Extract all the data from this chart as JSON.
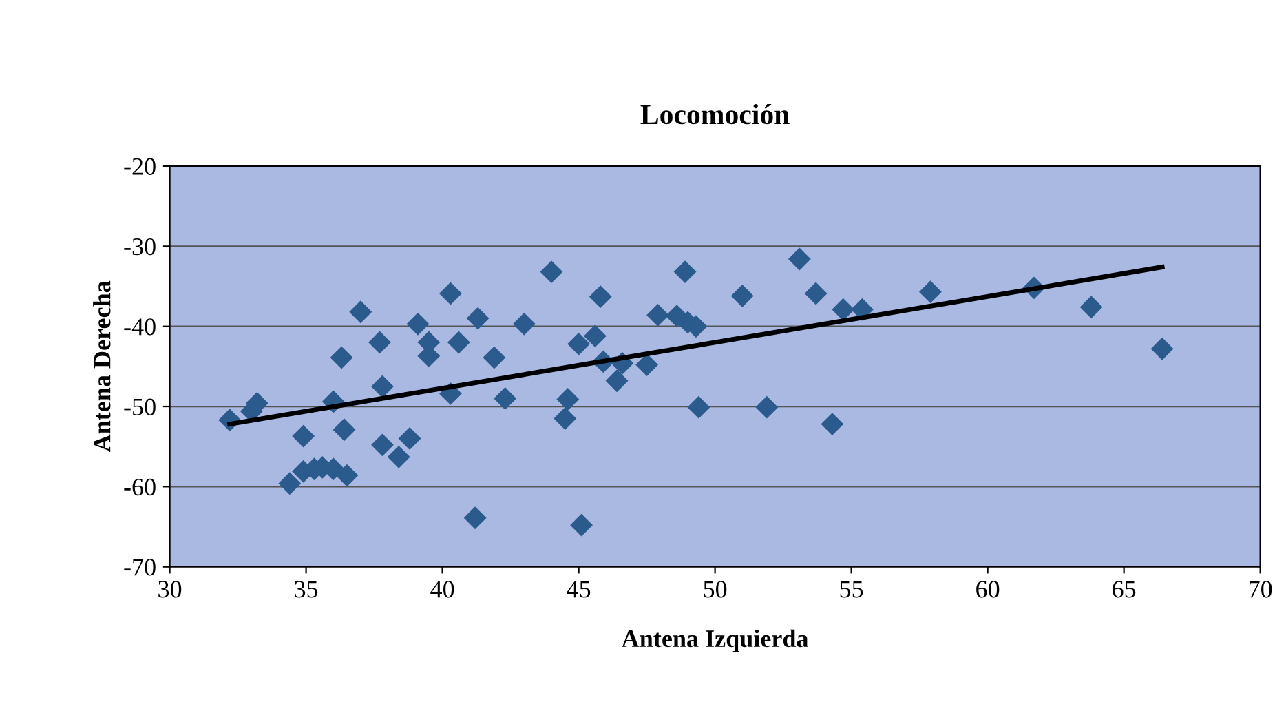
{
  "chart_data": {
    "type": "scatter",
    "title": "Locomoción",
    "xlabel": "Antena Izquierda",
    "ylabel": "Antena Derecha",
    "xlim": [
      30,
      70
    ],
    "xticks": [
      30,
      35,
      40,
      45,
      50,
      55,
      60,
      65,
      70
    ],
    "ylim": [
      -70,
      -20
    ],
    "yticks": [
      -70,
      -60,
      -50,
      -40,
      -30,
      -20
    ],
    "grid": "y",
    "series": [
      {
        "marker": "diamond",
        "color": "#2b5a8c",
        "x": [
          32.2,
          33.0,
          33.2,
          34.4,
          34.9,
          34.9,
          35.3,
          35.6,
          36.0,
          36.0,
          36.3,
          36.4,
          36.5,
          37.0,
          37.7,
          37.8,
          37.8,
          38.4,
          38.8,
          39.1,
          39.5,
          39.5,
          40.3,
          40.3,
          40.6,
          41.2,
          41.3,
          41.9,
          42.3,
          43.0,
          44.0,
          44.5,
          44.6,
          45.0,
          45.1,
          45.6,
          45.8,
          45.9,
          46.4,
          46.6,
          47.5,
          47.9,
          48.6,
          48.9,
          49.0,
          49.3,
          49.4,
          51.0,
          51.9,
          53.1,
          53.7,
          54.3,
          54.7,
          55.4,
          57.9,
          61.7,
          63.8,
          66.4
        ],
        "values": [
          -51.7,
          -50.6,
          -49.6,
          -59.6,
          -53.7,
          -58.1,
          -57.8,
          -57.6,
          -57.8,
          -49.4,
          -43.9,
          -52.9,
          -58.6,
          -38.2,
          -42.0,
          -47.5,
          -54.8,
          -56.3,
          -54.0,
          -39.7,
          -42.0,
          -43.7,
          -35.9,
          -48.4,
          -42.0,
          -63.9,
          -39.0,
          -43.9,
          -49.0,
          -39.7,
          -33.2,
          -51.5,
          -49.1,
          -42.2,
          -64.8,
          -41.2,
          -36.3,
          -44.4,
          -46.8,
          -44.6,
          -44.8,
          -38.6,
          -38.7,
          -33.2,
          -39.5,
          -40.0,
          -50.1,
          -36.2,
          -50.1,
          -31.6,
          -35.9,
          -52.2,
          -37.9,
          -37.9,
          -35.7,
          -35.2,
          -37.6,
          -42.8
        ]
      },
      {
        "type": "line",
        "color": "#000000",
        "x": [
          32.2,
          66.4
        ],
        "values": [
          -52.2,
          -32.6
        ],
        "line_style": "solid",
        "marker": "none"
      }
    ]
  }
}
